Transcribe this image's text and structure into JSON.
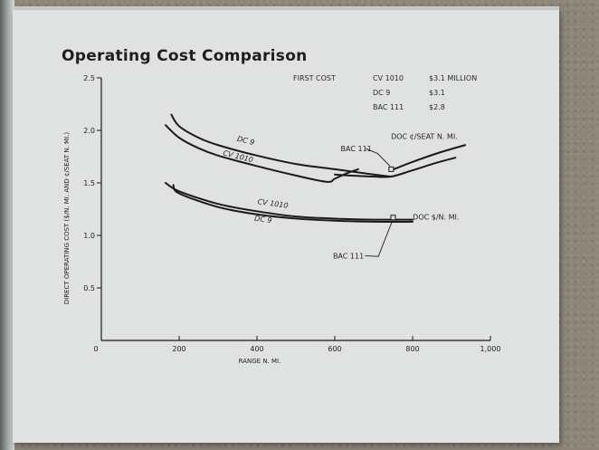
{
  "colors": {
    "ink": "#1a1a1a",
    "paper": "#dfe2e0",
    "background": "#8c8578"
  },
  "first_cost": {
    "heading": "FIRST COST",
    "rows": [
      {
        "aircraft": "CV 1010",
        "cost": "$3.1 MILLION"
      },
      {
        "aircraft": "DC 9",
        "cost": "$3.1"
      },
      {
        "aircraft": "BAC 111",
        "cost": "$2.8"
      }
    ]
  },
  "chart_data": {
    "type": "line",
    "title": "Operating Cost Comparison",
    "xlabel": "RANGE N. MI.",
    "ylabel": "DIRECT OPERATING COST ($/N. MI. AND ¢/SEAT N. MI.)",
    "xlim": [
      0,
      1000
    ],
    "ylim": [
      0,
      2.5
    ],
    "x_ticks": [
      0,
      200,
      400,
      600,
      800,
      1000
    ],
    "x_tick_labels": [
      "0",
      "200",
      "400",
      "600",
      "800",
      "1,000"
    ],
    "y_ticks": [
      0.5,
      1.0,
      1.5,
      2.0,
      2.5
    ],
    "y_tick_labels": [
      "0.5",
      "1.0",
      "1.5",
      "2.0",
      "2.5"
    ],
    "grid": false,
    "legend": "none",
    "series": [
      {
        "name": "DC 9",
        "group": "DOC ¢/SEAT N. MI.",
        "x": [
          180,
          200,
          250,
          300,
          400,
          500,
          600,
          700,
          745
        ],
        "y": [
          2.15,
          2.04,
          1.93,
          1.86,
          1.76,
          1.68,
          1.63,
          1.58,
          1.56
        ]
      },
      {
        "name": "CV 1010",
        "group": "DOC ¢/SEAT N. MI.",
        "x": [
          165,
          200,
          250,
          300,
          400,
          500,
          580,
          600,
          630,
          660
        ],
        "y": [
          2.05,
          1.93,
          1.83,
          1.76,
          1.66,
          1.57,
          1.51,
          1.54,
          1.59,
          1.63
        ]
      },
      {
        "name": "BAC 111",
        "group": "DOC ¢/SEAT N. MI.",
        "x": [
          600,
          640,
          700,
          745,
          800,
          860,
          910
        ],
        "y": [
          1.58,
          1.57,
          1.56,
          1.56,
          1.62,
          1.69,
          1.74
        ]
      },
      {
        "name": "BAC 111 (upper)",
        "group": "DOC ¢/SEAT N. MI.",
        "x": [
          745,
          800,
          870,
          935
        ],
        "y": [
          1.62,
          1.7,
          1.79,
          1.86
        ]
      },
      {
        "name": "CV 1010",
        "group": "DOC $/N. MI.",
        "x": [
          165,
          200,
          300,
          400,
          500,
          600,
          700,
          800
        ],
        "y": [
          1.5,
          1.42,
          1.3,
          1.23,
          1.18,
          1.16,
          1.15,
          1.15
        ]
      },
      {
        "name": "DC 9",
        "group": "DOC $/N. MI.",
        "x": [
          185,
          200,
          300,
          400,
          500,
          600,
          700,
          800
        ],
        "y": [
          1.48,
          1.4,
          1.27,
          1.2,
          1.16,
          1.14,
          1.13,
          1.13
        ]
      }
    ],
    "markers": [
      {
        "label": "BAC 111",
        "x": 745,
        "y": 1.63
      },
      {
        "label": "BAC 111",
        "x": 750,
        "y": 1.17
      }
    ],
    "annotations": [
      {
        "text": "DC 9",
        "x": 370,
        "y": 1.88,
        "rotate": 14
      },
      {
        "text": "CV 1010",
        "x": 350,
        "y": 1.73,
        "rotate": 14
      },
      {
        "text": "BAC 111",
        "x": 655,
        "y": 1.8,
        "rotate": 0
      },
      {
        "text": "DOC ¢/SEAT N. MI.",
        "x": 830,
        "y": 1.92,
        "rotate": 0
      },
      {
        "text": "CV 1010",
        "x": 440,
        "y": 1.28,
        "rotate": 8
      },
      {
        "text": "DC 9",
        "x": 415,
        "y": 1.13,
        "rotate": 8
      },
      {
        "text": "DOC $/N. MI.",
        "x": 860,
        "y": 1.15,
        "rotate": 0
      },
      {
        "text": "BAC 111",
        "x": 635,
        "y": 0.78,
        "rotate": 0
      }
    ]
  }
}
